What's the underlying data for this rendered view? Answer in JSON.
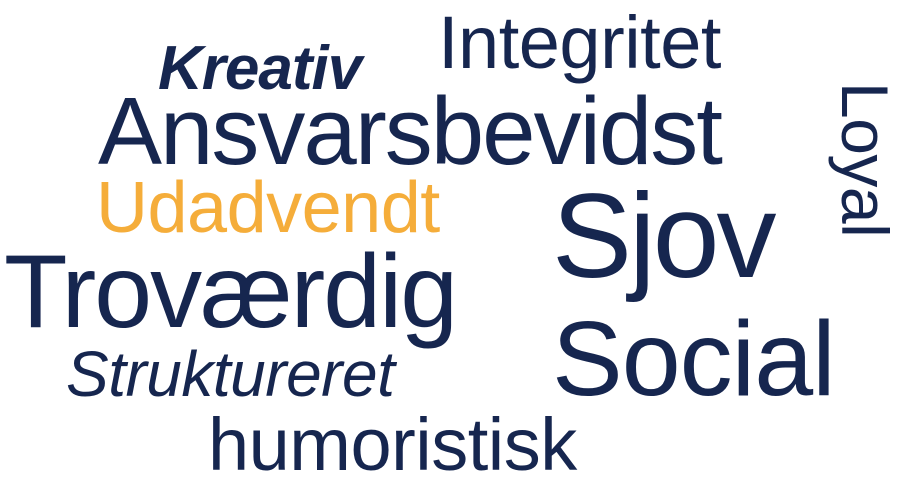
{
  "colors": {
    "primary_text": "#16264f",
    "accent_text": "#f5ad3a",
    "background": "#ffffff"
  },
  "word_cloud": {
    "words": [
      {
        "text": "Integritet",
        "style": "light"
      },
      {
        "text": "Kreativ",
        "style": "bold-italic"
      },
      {
        "text": "Ansvarsbevidst",
        "style": "light"
      },
      {
        "text": "Loyal",
        "style": "light-vertical"
      },
      {
        "text": "Udadvendt",
        "style": "light-accent"
      },
      {
        "text": "Sjov",
        "style": "regular"
      },
      {
        "text": "Troværdig",
        "style": "light"
      },
      {
        "text": "Social",
        "style": "light"
      },
      {
        "text": "Struktureret",
        "style": "light-italic"
      },
      {
        "text": "humoristisk",
        "style": "light"
      }
    ]
  }
}
